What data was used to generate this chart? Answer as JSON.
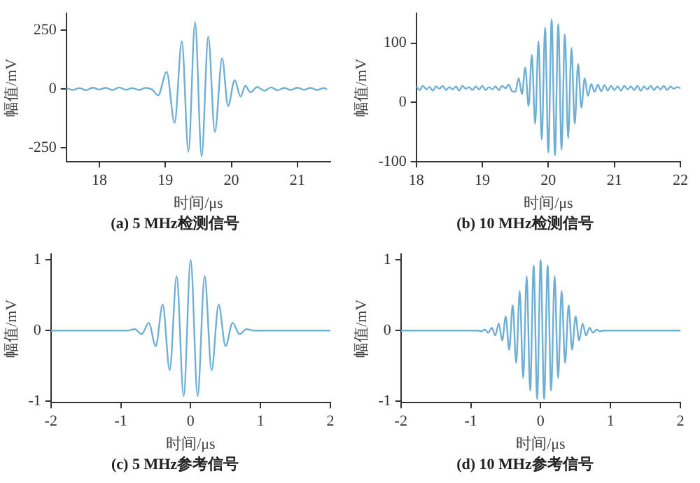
{
  "chart_data": [
    {
      "type": "line",
      "title": "(a) 5 MHz检测信号",
      "xlabel": "时间/μs",
      "ylabel": "幅值/mV",
      "color": "#6fafd3",
      "xlim": [
        17.5,
        21.5
      ],
      "ylim": [
        -310,
        320
      ],
      "xticks": [
        18,
        19,
        20,
        21
      ],
      "yticks": [
        -250,
        0,
        250
      ],
      "x": [
        17.5,
        17.6,
        17.7,
        17.8,
        17.9,
        18.0,
        18.1,
        18.2,
        18.3,
        18.4,
        18.5,
        18.6,
        18.7,
        18.8,
        18.89,
        19.02,
        19.14,
        19.25,
        19.35,
        19.45,
        19.55,
        19.65,
        19.75,
        19.86,
        19.95,
        20.05,
        20.14,
        20.21,
        20.29,
        20.39,
        20.5,
        20.6,
        20.7,
        20.8,
        20.9,
        21.0,
        21.1,
        21.2,
        21.3,
        21.4,
        21.45
      ],
      "values": [
        4,
        -5,
        3,
        -6,
        5,
        -3,
        4,
        -5,
        6,
        -4,
        3,
        -5,
        4,
        -3,
        -28,
        72,
        -145,
        202,
        -267,
        283,
        -287,
        222,
        -183,
        130,
        -73,
        37,
        -33,
        13,
        -15,
        8,
        -8,
        6,
        -6,
        4,
        -5,
        5,
        -4,
        4,
        -5,
        3,
        -3
      ]
    },
    {
      "type": "line",
      "title": "(b) 10 MHz检测信号",
      "xlabel": "时间/μs",
      "ylabel": "幅值/mV",
      "color": "#6fafd3",
      "xlim": [
        18,
        22
      ],
      "ylim": [
        -100,
        150
      ],
      "xticks": [
        18,
        19,
        20,
        21,
        22
      ],
      "yticks": [
        -100,
        0,
        100
      ],
      "x": [
        18.0,
        18.05,
        18.1,
        18.15,
        18.2,
        18.25,
        18.3,
        18.35,
        18.4,
        18.45,
        18.5,
        18.55,
        18.6,
        18.65,
        18.7,
        18.75,
        18.8,
        18.85,
        18.9,
        18.95,
        19.0,
        19.05,
        19.1,
        19.15,
        19.2,
        19.25,
        19.3,
        19.35,
        19.4,
        19.45,
        19.5,
        19.55,
        19.6,
        19.65,
        19.7,
        19.75,
        19.8,
        19.85,
        19.9,
        19.95,
        20.0,
        20.05,
        20.1,
        20.15,
        20.2,
        20.25,
        20.3,
        20.35,
        20.4,
        20.45,
        20.5,
        20.55,
        20.6,
        20.65,
        20.7,
        20.75,
        20.8,
        20.85,
        20.9,
        20.95,
        21.0,
        21.05,
        21.1,
        21.15,
        21.2,
        21.25,
        21.3,
        21.35,
        21.4,
        21.45,
        21.5,
        21.55,
        21.6,
        21.65,
        21.7,
        21.75,
        21.8,
        21.85,
        21.9,
        21.95,
        22.0
      ],
      "values": [
        27,
        21,
        28,
        22,
        26,
        20,
        27,
        23,
        28,
        21,
        26,
        22,
        27,
        20,
        28,
        23,
        26,
        21,
        27,
        22,
        28,
        21,
        26,
        22,
        27,
        21,
        28,
        24,
        30,
        19,
        18,
        41,
        14,
        59,
        -6,
        80,
        -36,
        103,
        -63,
        126,
        -84,
        140,
        -89,
        132,
        -80,
        115,
        -60,
        92,
        -36,
        65,
        -9,
        41,
        11,
        31,
        18,
        30,
        19,
        29,
        20,
        28,
        21,
        27,
        20,
        28,
        22,
        27,
        21,
        28,
        20,
        27,
        22,
        28,
        21,
        27,
        22,
        28,
        21,
        27,
        23,
        26,
        24
      ]
    },
    {
      "type": "line",
      "title": "(c) 5 MHz参考信号",
      "xlabel": "时间/μs",
      "ylabel": "幅值/mV",
      "color": "#6fafd3",
      "xlim": [
        -2,
        2
      ],
      "ylim": [
        -1.02,
        1.08
      ],
      "xticks": [
        -2,
        -1,
        0,
        1,
        2
      ],
      "yticks": [
        -1,
        0,
        1
      ],
      "x": [
        -2,
        -0.9,
        -0.8,
        -0.7,
        -0.6,
        -0.5,
        -0.4,
        -0.3,
        -0.2,
        -0.1,
        0,
        0.1,
        0.2,
        0.3,
        0.4,
        0.5,
        0.6,
        0.7,
        0.8,
        0.9,
        2
      ],
      "values": [
        0,
        0,
        0.02,
        -0.05,
        0.11,
        -0.22,
        0.37,
        -0.56,
        0.77,
        -0.93,
        1,
        -0.93,
        0.77,
        -0.56,
        0.37,
        -0.22,
        0.11,
        -0.05,
        0.02,
        0,
        0
      ]
    },
    {
      "type": "line",
      "title": "(d) 10 MHz参考信号",
      "xlabel": "时间/μs",
      "ylabel": "幅值/mV",
      "color": "#6fafd3",
      "xlim": [
        -2,
        2
      ],
      "ylim": [
        -1.02,
        1.08
      ],
      "xticks": [
        -2,
        -1,
        0,
        1,
        2
      ],
      "yticks": [
        -1,
        0,
        1
      ],
      "x": [
        -2,
        -0.9,
        -0.85,
        -0.8,
        -0.75,
        -0.7,
        -0.65,
        -0.6,
        -0.55,
        -0.5,
        -0.45,
        -0.4,
        -0.35,
        -0.3,
        -0.25,
        -0.2,
        -0.15,
        -0.1,
        -0.05,
        0,
        0.05,
        0.1,
        0.15,
        0.2,
        0.25,
        0.3,
        0.35,
        0.4,
        0.45,
        0.5,
        0.55,
        0.6,
        0.65,
        0.7,
        0.75,
        0.8,
        0.85,
        0.9,
        2
      ],
      "values": [
        0,
        0,
        -0.01,
        0.015,
        -0.03,
        0.04,
        -0.07,
        0.1,
        -0.14,
        0.2,
        -0.27,
        0.36,
        -0.46,
        0.56,
        -0.67,
        0.77,
        -0.85,
        0.92,
        -0.97,
        1,
        -0.97,
        0.92,
        -0.85,
        0.77,
        -0.67,
        0.56,
        -0.46,
        0.36,
        -0.27,
        0.2,
        -0.14,
        0.1,
        -0.07,
        0.04,
        -0.03,
        0.015,
        -0.01,
        0,
        0
      ]
    }
  ]
}
